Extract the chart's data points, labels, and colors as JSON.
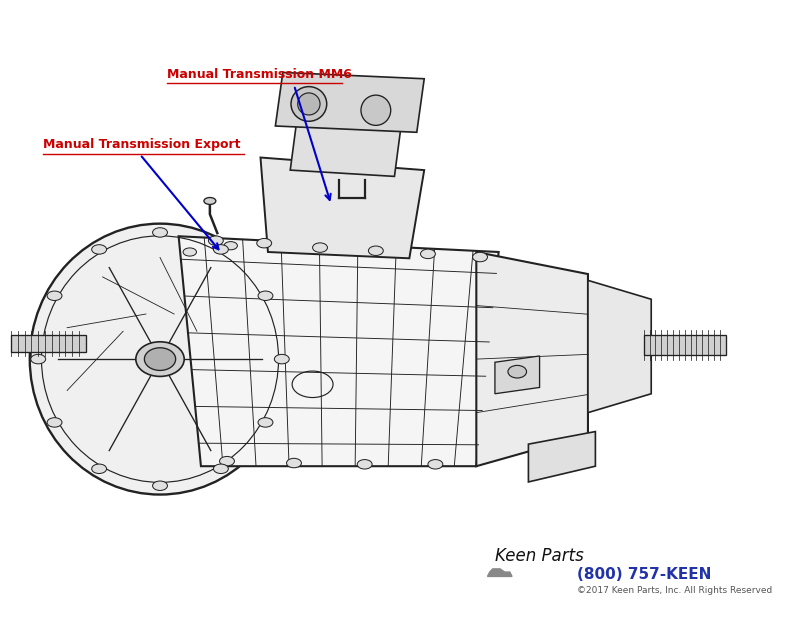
{
  "background_color": "#ffffff",
  "label1_text": "Manual Transmission MM6",
  "label1_color": "#cc0000",
  "label2_text": "Manual Transmission Export",
  "label2_color": "#cc0000",
  "arrow_color": "#0000cc",
  "phone_text": "(800) 757-KEEN",
  "phone_color": "#2233aa",
  "copyright_text": "©2017 Keen Parts, Inc. All Rights Reserved",
  "copyright_color": "#555555"
}
